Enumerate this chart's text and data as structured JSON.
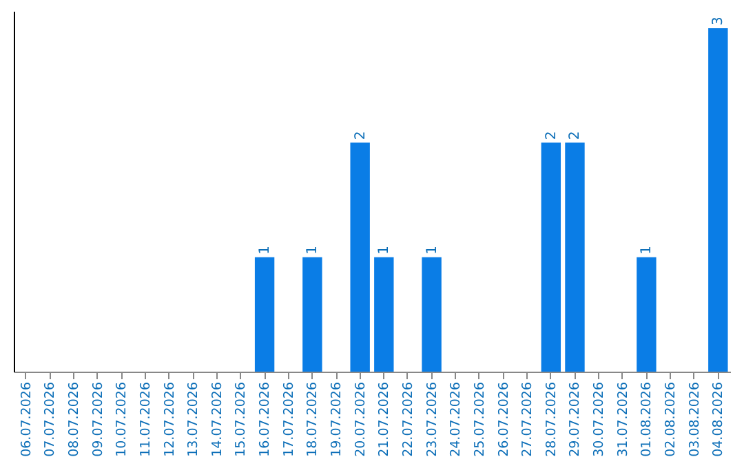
{
  "chart_data": {
    "type": "bar",
    "categories": [
      "06.07.2026",
      "07.07.2026",
      "08.07.2026",
      "09.07.2026",
      "10.07.2026",
      "11.07.2026",
      "12.07.2026",
      "13.07.2026",
      "14.07.2026",
      "15.07.2026",
      "16.07.2026",
      "17.07.2026",
      "18.07.2026",
      "19.07.2026",
      "20.07.2026",
      "21.07.2026",
      "22.07.2026",
      "23.07.2026",
      "24.07.2026",
      "25.07.2026",
      "26.07.2026",
      "27.07.2026",
      "28.07.2026",
      "29.07.2026",
      "30.07.2026",
      "31.07.2026",
      "01.08.2026",
      "02.08.2026",
      "03.08.2026",
      "04.08.2026"
    ],
    "values": [
      0,
      0,
      0,
      0,
      0,
      0,
      0,
      0,
      0,
      0,
      1,
      0,
      1,
      0,
      2,
      1,
      0,
      1,
      0,
      0,
      0,
      0,
      2,
      2,
      0,
      0,
      1,
      0,
      0,
      3
    ],
    "value_labels": [
      null,
      null,
      null,
      null,
      null,
      null,
      null,
      null,
      null,
      null,
      "1",
      null,
      "1",
      null,
      "2",
      "1",
      null,
      "1",
      null,
      null,
      null,
      null,
      "2",
      "2",
      null,
      null,
      "1",
      null,
      null,
      "3"
    ],
    "color": "#0a7de6",
    "ylim": [
      0,
      3.15
    ],
    "tick_labels": "x",
    "grid": false
  }
}
